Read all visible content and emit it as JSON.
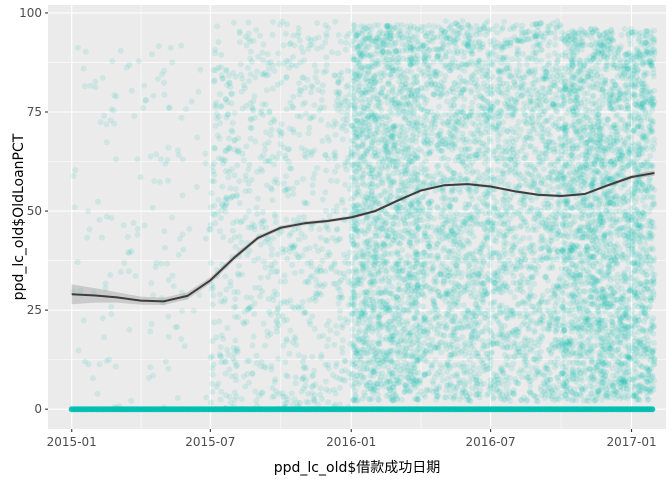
{
  "chart_data": {
    "type": "scatter",
    "xlabel": "ppd_lc_old$借款成功日期",
    "ylabel": "ppd_lc_old$OldLoanPCT",
    "x_ticks": [
      "2015-01",
      "2015-07",
      "2016-01",
      "2016-07",
      "2017-01"
    ],
    "x_tick_values": [
      "2015-01-01",
      "2015-07-01",
      "2016-01-01",
      "2016-07-01",
      "2017-01-01"
    ],
    "y_ticks": [
      0,
      25,
      50,
      75,
      100
    ],
    "xlim": [
      "2014-12-01",
      "2017-02-15"
    ],
    "ylim": [
      -5,
      102
    ],
    "grid": true,
    "point_color": "#00BFB0",
    "zero_line_range": [
      "2015-01-01",
      "2017-01-31"
    ],
    "point_density": [
      {
        "start": "2015-01-01",
        "end": "2015-06-30",
        "n": 160,
        "ymin": 0,
        "ymax": 92
      },
      {
        "start": "2015-07-01",
        "end": "2015-12-31",
        "n": 900,
        "ymin": 0,
        "ymax": 98
      },
      {
        "start": "2016-01-01",
        "end": "2016-03-31",
        "n": 1800,
        "ymin": 2,
        "ymax": 97
      },
      {
        "start": "2016-04-01",
        "end": "2016-09-30",
        "n": 2600,
        "ymin": 2,
        "ymax": 98
      },
      {
        "start": "2016-10-01",
        "end": "2017-01-31",
        "n": 2600,
        "ymin": 2,
        "ymax": 96
      }
    ],
    "series": [
      {
        "type": "smooth",
        "color": "#3D3D3D",
        "points": [
          {
            "x": "2015-01-01",
            "y": 29,
            "se": 2.5
          },
          {
            "x": "2015-02-01",
            "y": 28.7,
            "se": 1.8
          },
          {
            "x": "2015-03-01",
            "y": 28.2,
            "se": 1.3
          },
          {
            "x": "2015-04-01",
            "y": 27.4,
            "se": 1.0
          },
          {
            "x": "2015-05-01",
            "y": 27.2,
            "se": 0.9
          },
          {
            "x": "2015-06-01",
            "y": 28.6,
            "se": 0.9
          },
          {
            "x": "2015-07-01",
            "y": 32.5,
            "se": 0.8
          },
          {
            "x": "2015-08-01",
            "y": 38.2,
            "se": 0.7
          },
          {
            "x": "2015-09-01",
            "y": 43.2,
            "se": 0.6
          },
          {
            "x": "2015-10-01",
            "y": 45.8,
            "se": 0.5
          },
          {
            "x": "2015-11-01",
            "y": 46.9,
            "se": 0.5
          },
          {
            "x": "2015-12-01",
            "y": 47.5,
            "se": 0.4
          },
          {
            "x": "2016-01-01",
            "y": 48.4,
            "se": 0.4
          },
          {
            "x": "2016-02-01",
            "y": 50,
            "se": 0.4
          },
          {
            "x": "2016-03-01",
            "y": 52.6,
            "se": 0.4
          },
          {
            "x": "2016-04-01",
            "y": 55.2,
            "se": 0.3
          },
          {
            "x": "2016-05-01",
            "y": 56.5,
            "se": 0.3
          },
          {
            "x": "2016-06-01",
            "y": 56.8,
            "se": 0.3
          },
          {
            "x": "2016-07-01",
            "y": 56.2,
            "se": 0.3
          },
          {
            "x": "2016-08-01",
            "y": 55.0,
            "se": 0.3
          },
          {
            "x": "2016-09-01",
            "y": 54.1,
            "se": 0.3
          },
          {
            "x": "2016-10-01",
            "y": 53.8,
            "se": 0.3
          },
          {
            "x": "2016-11-01",
            "y": 54.3,
            "se": 0.3
          },
          {
            "x": "2016-12-01",
            "y": 56.5,
            "se": 0.4
          },
          {
            "x": "2017-01-01",
            "y": 58.6,
            "se": 0.5
          },
          {
            "x": "2017-01-31",
            "y": 59.6,
            "se": 0.7
          }
        ]
      }
    ]
  }
}
